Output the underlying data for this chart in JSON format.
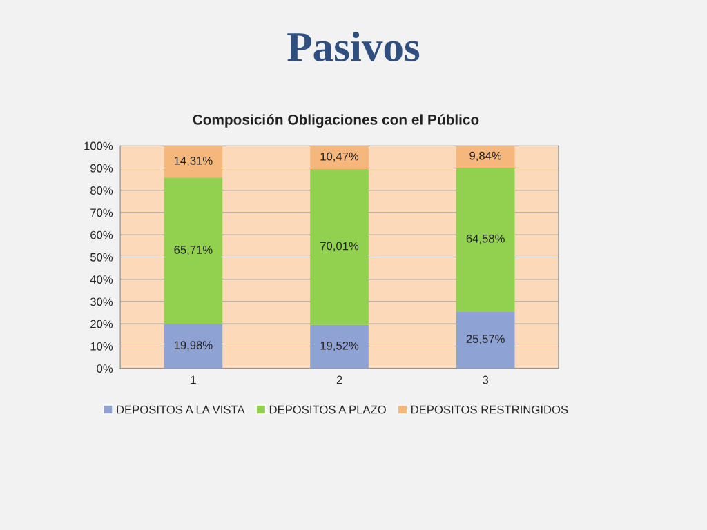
{
  "chart_data": {
    "type": "bar",
    "title": "Pasivos",
    "subtitle": "Composición Obligaciones con el Público",
    "categories": [
      "1",
      "2",
      "3"
    ],
    "stacked": true,
    "series": [
      {
        "name": "DEPOSITOS A LA VISTA",
        "color": "#8fa2d4",
        "values": [
          19.98,
          19.52,
          25.57
        ],
        "value_labels": [
          "19,98%",
          "19,52%",
          "25,57%"
        ]
      },
      {
        "name": "DEPOSITOS A PLAZO",
        "color": "#92d050",
        "values": [
          65.71,
          70.01,
          64.58
        ],
        "value_labels": [
          "65,71%",
          "70,01%",
          "64,58%"
        ]
      },
      {
        "name": "DEPOSITOS RESTRINGIDOS",
        "color": "#f5b77c",
        "values": [
          14.31,
          10.47,
          9.84
        ],
        "value_labels": [
          "14,31%",
          "10,47%",
          "9,84%"
        ]
      }
    ],
    "ylim": [
      0,
      100
    ],
    "yticks": [
      {
        "value": 0,
        "label": "0%"
      },
      {
        "value": 10,
        "label": "10%"
      },
      {
        "value": 20,
        "label": "20%"
      },
      {
        "value": 30,
        "label": "30%"
      },
      {
        "value": 40,
        "label": "40%"
      },
      {
        "value": 50,
        "label": "50%"
      },
      {
        "value": 60,
        "label": "60%"
      },
      {
        "value": 70,
        "label": "70%"
      },
      {
        "value": 80,
        "label": "80%"
      },
      {
        "value": 90,
        "label": "90%"
      },
      {
        "value": 100,
        "label": "100%"
      }
    ],
    "grid": "y",
    "legend": "bottom"
  }
}
